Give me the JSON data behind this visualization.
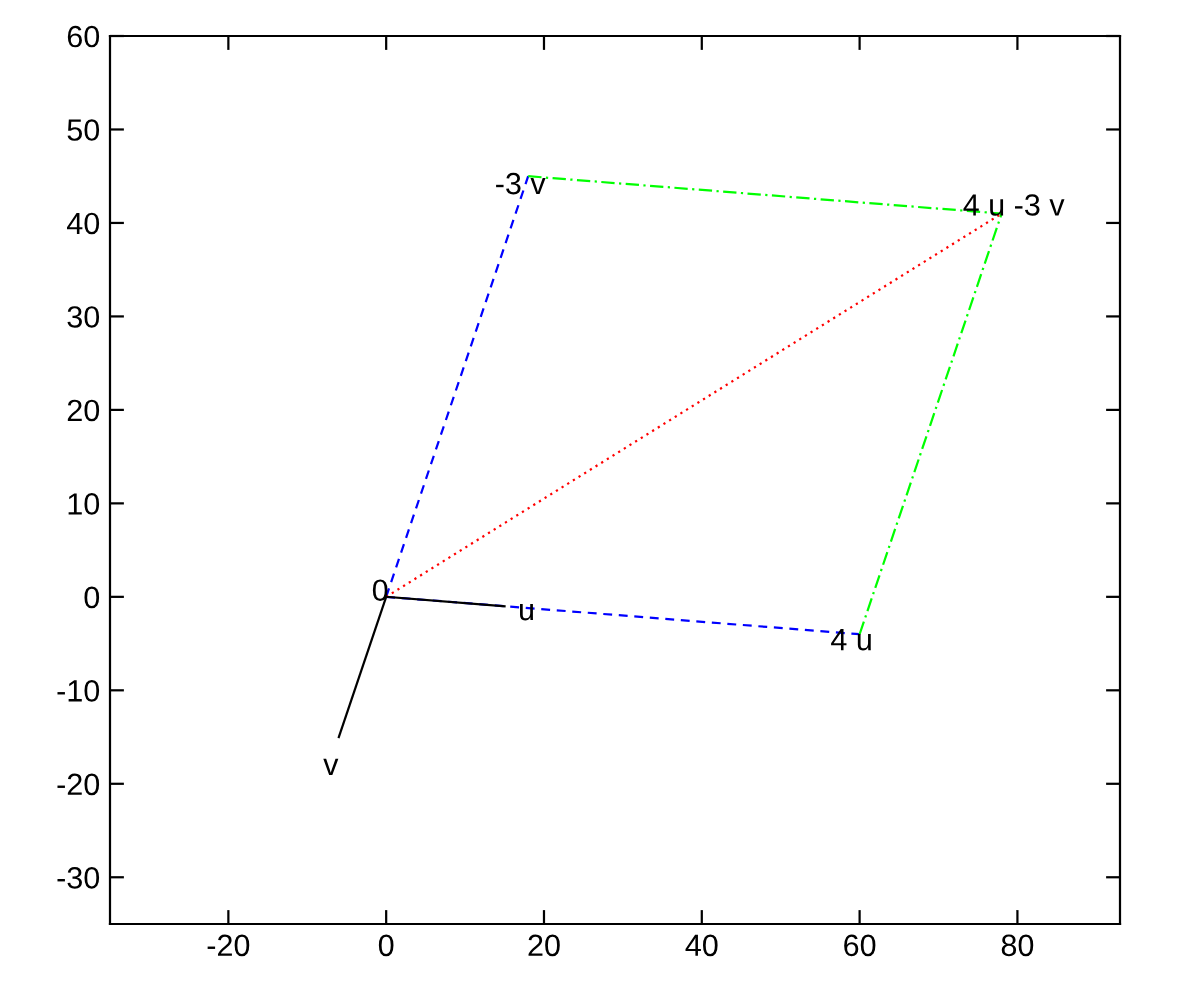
{
  "chart_data": {
    "type": "line",
    "xlim": [
      -35,
      93
    ],
    "ylim": [
      -35,
      60
    ],
    "xticks": [
      -20,
      0,
      20,
      40,
      60,
      80
    ],
    "yticks": [
      -30,
      -20,
      -10,
      0,
      10,
      20,
      30,
      40,
      50,
      60
    ],
    "series": [
      {
        "color": "#0000ff",
        "line_style": "dashed",
        "x": [
          0,
          18
        ],
        "values": [
          0,
          45
        ]
      },
      {
        "color": "#0000ff",
        "line_style": "dashed",
        "x": [
          0,
          60
        ],
        "values": [
          0,
          -4
        ]
      },
      {
        "color": "#00ff00",
        "line_style": "dashdot",
        "x": [
          18,
          78
        ],
        "values": [
          45,
          41
        ]
      },
      {
        "color": "#00ff00",
        "line_style": "dashdot",
        "x": [
          60,
          78
        ],
        "values": [
          -4,
          41
        ]
      },
      {
        "color": "#ff0000",
        "line_style": "dotted",
        "x": [
          0,
          78
        ],
        "values": [
          0,
          41
        ]
      },
      {
        "color": "#000000",
        "line_style": "solid",
        "x": [
          0,
          15
        ],
        "values": [
          0,
          -1
        ]
      },
      {
        "color": "#000000",
        "line_style": "solid",
        "x": [
          0,
          -6
        ],
        "values": [
          0,
          -15
        ]
      }
    ],
    "annotations": [
      {
        "text": "0",
        "x": 0,
        "y": 0
      },
      {
        "text": "u",
        "x": 15,
        "y": -1
      },
      {
        "text": "v",
        "x": -6,
        "y": -15
      },
      {
        "text": "4 u",
        "x": 60,
        "y": -4
      },
      {
        "text": "-3 v",
        "x": 18,
        "y": 45
      },
      {
        "text": "4 u -3 v",
        "x": 78,
        "y": 41
      }
    ],
    "grid": false,
    "legend": false
  }
}
